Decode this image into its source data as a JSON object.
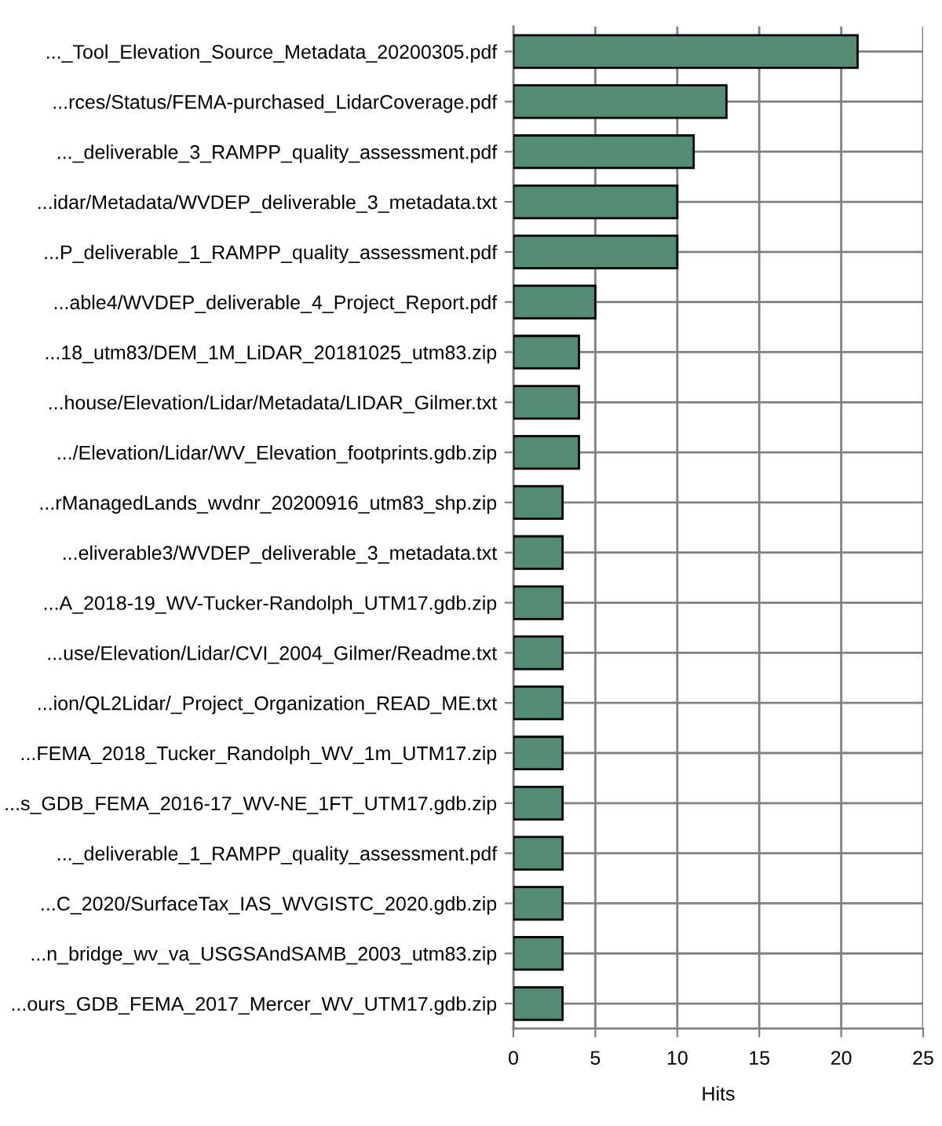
{
  "chart_data": {
    "type": "bar",
    "orientation": "horizontal",
    "categories": [
      "..._Tool_Elevation_Source_Metadata_20200305.pdf",
      "...rces/Status/FEMA-purchased_LidarCoverage.pdf",
      "..._deliverable_3_RAMPP_quality_assessment.pdf",
      "...idar/Metadata/WVDEP_deliverable_3_metadata.txt",
      "...P_deliverable_1_RAMPP_quality_assessment.pdf",
      "...able4/WVDEP_deliverable_4_Project_Report.pdf",
      "...18_utm83/DEM_1M_LiDAR_20181025_utm83.zip",
      "...house/Elevation/Lidar/Metadata/LIDAR_Gilmer.txt",
      ".../Elevation/Lidar/WV_Elevation_footprints.gdb.zip",
      "...rManagedLands_wvdnr_20200916_utm83_shp.zip",
      "...eliverable3/WVDEP_deliverable_3_metadata.txt",
      "...A_2018-19_WV-Tucker-Randolph_UTM17.gdb.zip",
      "...use/Elevation/Lidar/CVI_2004_Gilmer/Readme.txt",
      "...ion/QL2Lidar/_Project_Organization_READ_ME.txt",
      "...FEMA_2018_Tucker_Randolph_WV_1m_UTM17.zip",
      "...s_GDB_FEMA_2016-17_WV-NE_1FT_UTM17.gdb.zip",
      "..._deliverable_1_RAMPP_quality_assessment.pdf",
      "...C_2020/SurfaceTax_IAS_WVGISTC_2020.gdb.zip",
      "...n_bridge_wv_va_USGSAndSAMB_2003_utm83.zip",
      "...ours_GDB_FEMA_2017_Mercer_WV_UTM17.gdb.zip"
    ],
    "values": [
      21,
      13,
      11,
      10,
      10,
      5,
      4,
      4,
      4,
      3,
      3,
      3,
      3,
      3,
      3,
      3,
      3,
      3,
      3,
      3
    ],
    "color": "#548b73",
    "xlabel": "Hits",
    "xlim": [
      0,
      25
    ],
    "xticks": [
      0,
      5,
      10,
      15,
      20,
      25
    ],
    "grid": true
  }
}
